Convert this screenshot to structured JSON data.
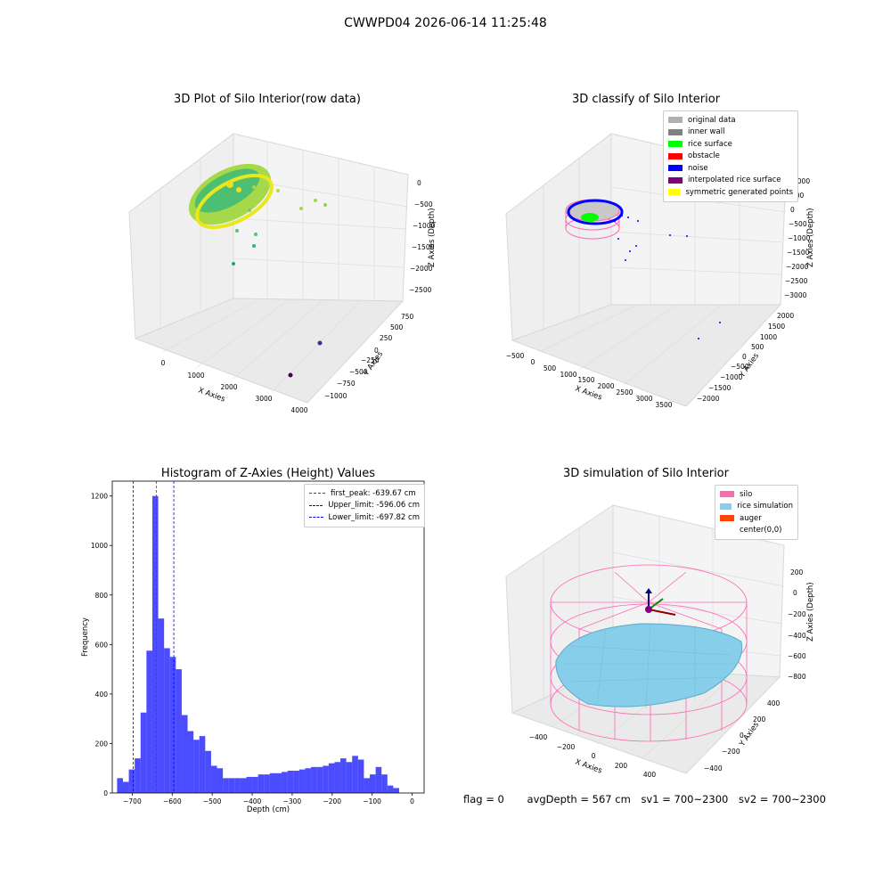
{
  "suptitle": "CWWPD04 2026-06-14 11:25:48",
  "panels": {
    "raw": {
      "title": "3D Plot of Silo Interior(row data)",
      "xlabel": "X Axies",
      "ylabel": "Y Axies",
      "zlabel": "Z Axies (Depth)",
      "xticks": [
        "0",
        "1000",
        "2000",
        "3000",
        "4000"
      ],
      "yticks": [
        "750",
        "500",
        "250",
        "0",
        "−250",
        "−500",
        "−750",
        "−1000"
      ],
      "zticks": [
        "0",
        "−500",
        "−1000",
        "−1500",
        "−2000",
        "−2500"
      ]
    },
    "classify": {
      "title": "3D classify of Silo Interior",
      "xlabel": "X Axies",
      "ylabel": "Y Axies",
      "zlabel": "Z Axies (Depth)",
      "xticks": [
        "−500",
        "0",
        "500",
        "1000",
        "1500",
        "2000",
        "2500",
        "3000",
        "3500"
      ],
      "yticks": [
        "2000",
        "1500",
        "1000",
        "500",
        "0",
        "−500",
        "−1000",
        "−1500",
        "−2000"
      ],
      "zticks": [
        "1000",
        "500",
        "0",
        "−500",
        "−1000",
        "−1500",
        "−2000",
        "−2500",
        "−3000"
      ],
      "legend": [
        {
          "label": "original data",
          "color": "#b0b0b0"
        },
        {
          "label": "inner wall",
          "color": "#808080"
        },
        {
          "label": "rice surface",
          "color": "#00ff00"
        },
        {
          "label": "obstacle",
          "color": "#ff0000"
        },
        {
          "label": "noise",
          "color": "#0000ff"
        },
        {
          "label": "interpolated rice surface",
          "color": "#800080"
        },
        {
          "label": "symmetric generated points",
          "color": "#ffff00"
        }
      ]
    },
    "simulation": {
      "title": "3D simulation of Silo Interior",
      "xlabel": "X Axies",
      "ylabel": "Y Axies",
      "zlabel": "Z Axies (Depth)",
      "xticks": [
        "−400",
        "−200",
        "0",
        "200",
        "400"
      ],
      "yticks": [
        "400",
        "200",
        "0",
        "−200",
        "−400"
      ],
      "zticks": [
        "200",
        "0",
        "−200",
        "−400",
        "−600",
        "−800"
      ],
      "legend": [
        {
          "label": "silo",
          "color": "#ff69b4"
        },
        {
          "label": "rice simulation",
          "color": "#87ceeb"
        },
        {
          "label": "auger",
          "color": "#ff4500"
        },
        {
          "label": "center(0,0)",
          "color": "#ffffff"
        }
      ]
    }
  },
  "status": {
    "flag": "flag = 0",
    "avg_depth": "avgDepth = 567 cm",
    "sv1": "sv1 = 700~2300",
    "sv2": "sv2 = 700~2300"
  },
  "chart_data": {
    "type": "bar",
    "title": "Histogram of Z-Axies (Height) Values",
    "xlabel": "Depth (cm)",
    "ylabel": "Frequency",
    "xlim": [
      -750,
      30
    ],
    "ylim": [
      0,
      1260
    ],
    "xticks": [
      -700,
      -600,
      -500,
      -400,
      -300,
      -200,
      -100,
      0
    ],
    "xtick_labels": [
      "−700",
      "−600",
      "−500",
      "−400",
      "−300",
      "−200",
      "−100",
      "0"
    ],
    "yticks": [
      0,
      200,
      400,
      600,
      800,
      1000,
      1200
    ],
    "bin_start": -738,
    "bin_width": 14.7,
    "bar_color": "#0000ff",
    "values": [
      60,
      45,
      95,
      140,
      325,
      575,
      1200,
      705,
      585,
      550,
      500,
      315,
      250,
      215,
      230,
      170,
      110,
      100,
      60,
      60,
      60,
      60,
      65,
      65,
      75,
      75,
      80,
      80,
      85,
      90,
      90,
      95,
      100,
      105,
      105,
      110,
      120,
      125,
      140,
      125,
      150,
      135,
      60,
      75,
      105,
      75,
      30,
      20
    ],
    "lines": [
      {
        "label": "first_peak: -639.67 cm",
        "x": -639.67,
        "color": "#ff0000"
      },
      {
        "label": "Upper_limit: -596.06 cm",
        "x": -596.06,
        "color": "#0000ff"
      },
      {
        "label": "Lower_limit: -697.82 cm",
        "x": -697.82,
        "color": "#0000ff"
      }
    ]
  }
}
